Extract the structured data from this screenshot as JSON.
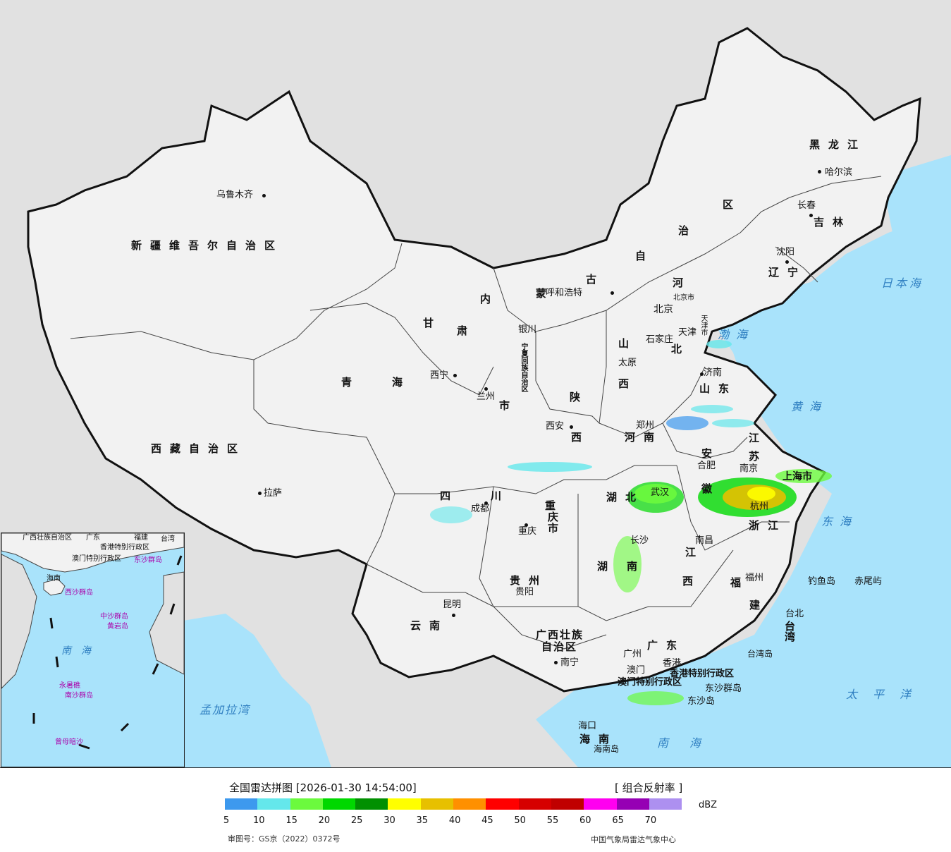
{
  "map": {
    "cities": [
      {
        "id": "urumqi",
        "name": "乌鲁木齐"
      },
      {
        "id": "hohhot",
        "name": "呼和浩特"
      },
      {
        "id": "harbin",
        "name": "哈尔滨"
      },
      {
        "id": "changchun",
        "name": "长春"
      },
      {
        "id": "shenyang",
        "name": "沈阳"
      },
      {
        "id": "beijing",
        "name": "北京"
      },
      {
        "id": "beijingshi",
        "name": "北京市"
      },
      {
        "id": "tianjin",
        "name": "天津"
      },
      {
        "id": "tianjinshi",
        "name": "天津市"
      },
      {
        "id": "shijiazhuang",
        "name": "石家庄"
      },
      {
        "id": "taiyuan",
        "name": "太原"
      },
      {
        "id": "yinchuan",
        "name": "银川"
      },
      {
        "id": "xining",
        "name": "西宁"
      },
      {
        "id": "lanzhou",
        "name": "兰州"
      },
      {
        "id": "xian",
        "name": "西安"
      },
      {
        "id": "zhengzhou",
        "name": "郑州"
      },
      {
        "id": "jinan",
        "name": "济南"
      },
      {
        "id": "hefei",
        "name": "合肥"
      },
      {
        "id": "nanjing",
        "name": "南京"
      },
      {
        "id": "shanghai",
        "name": "上海市"
      },
      {
        "id": "hangzhou",
        "name": "杭州"
      },
      {
        "id": "wuhan",
        "name": "武汉"
      },
      {
        "id": "nanchang",
        "name": "南昌"
      },
      {
        "id": "changsha",
        "name": "长沙"
      },
      {
        "id": "chengdu",
        "name": "成都"
      },
      {
        "id": "chongqing",
        "name": "重庆"
      },
      {
        "id": "guiyang",
        "name": "贵阳"
      },
      {
        "id": "kunming",
        "name": "昆明"
      },
      {
        "id": "lhasa",
        "name": "拉萨"
      },
      {
        "id": "nanning",
        "name": "南宁"
      },
      {
        "id": "guangzhou",
        "name": "广州"
      },
      {
        "id": "fuzhou",
        "name": "福州"
      },
      {
        "id": "taibei",
        "name": "台北"
      },
      {
        "id": "haikou",
        "name": "海口"
      },
      {
        "id": "xianggang",
        "name": "香港"
      },
      {
        "id": "aomen",
        "name": "澳门"
      }
    ],
    "provinces": [
      {
        "id": "xinjiang",
        "name": "新疆维吾尔自治区"
      },
      {
        "id": "xizang",
        "name": "西藏自治区"
      },
      {
        "id": "qinghai1",
        "name": "青"
      },
      {
        "id": "qinghai2",
        "name": "海"
      },
      {
        "id": "gansu",
        "name": "甘"
      },
      {
        "id": "gansu2",
        "name": "肃"
      },
      {
        "id": "neimeng1",
        "name": "内"
      },
      {
        "id": "neimeng2",
        "name": "蒙"
      },
      {
        "id": "neimeng3",
        "name": "古"
      },
      {
        "id": "neimeng4",
        "name": "自"
      },
      {
        "id": "neimeng5",
        "name": "治"
      },
      {
        "id": "neimeng6",
        "name": "区"
      },
      {
        "id": "heilongjiang",
        "name": "黑龙江"
      },
      {
        "id": "jilin",
        "name": "吉林"
      },
      {
        "id": "liaoning",
        "name": "辽宁"
      },
      {
        "id": "hebei1",
        "name": "河"
      },
      {
        "id": "hebei2",
        "name": "北"
      },
      {
        "id": "shanxi1",
        "name": "山"
      },
      {
        "id": "shanxi2",
        "name": "西"
      },
      {
        "id": "shaanxi1",
        "name": "陕"
      },
      {
        "id": "shaanxi2",
        "name": "西"
      },
      {
        "id": "ningxia",
        "name": "宁夏回族自治区"
      },
      {
        "id": "shandong",
        "name": "山东"
      },
      {
        "id": "henan",
        "name": "河南"
      },
      {
        "id": "anhui1",
        "name": "安"
      },
      {
        "id": "anhui2",
        "name": "徽"
      },
      {
        "id": "jiangsu1",
        "name": "江"
      },
      {
        "id": "jiangsu2",
        "name": "苏"
      },
      {
        "id": "zhejiang",
        "name": "浙江"
      },
      {
        "id": "hubei",
        "name": "湖北"
      },
      {
        "id": "hunan1",
        "name": "湖"
      },
      {
        "id": "hunan2",
        "name": "南"
      },
      {
        "id": "jiangxi1",
        "name": "江"
      },
      {
        "id": "jiangxi2",
        "name": "西"
      },
      {
        "id": "fujian1",
        "name": "福"
      },
      {
        "id": "fujian2",
        "name": "建"
      },
      {
        "id": "sichuan1",
        "name": "四"
      },
      {
        "id": "sichuan2",
        "name": "川"
      },
      {
        "id": "chongqingshi1",
        "name": "重"
      },
      {
        "id": "chongqingshi2",
        "name": "庆"
      },
      {
        "id": "chongqingshi3",
        "name": "市"
      },
      {
        "id": "guizhou",
        "name": "贵州"
      },
      {
        "id": "yunnan",
        "name": "云南"
      },
      {
        "id": "guangxi1",
        "name": "广西壮族"
      },
      {
        "id": "guangxi2",
        "name": "自治区"
      },
      {
        "id": "guangdong",
        "name": "广东"
      },
      {
        "id": "hainan",
        "name": "海南"
      },
      {
        "id": "taiwan",
        "name": "台湾"
      },
      {
        "id": "hk_sar",
        "name": "香港特别行政区"
      },
      {
        "id": "macau_sar",
        "name": "澳门特别行政区"
      },
      {
        "id": "gansu_sz",
        "name": "市"
      }
    ],
    "seas": [
      {
        "id": "bohai",
        "name": "渤海"
      },
      {
        "id": "huanghai",
        "name": "黄海"
      },
      {
        "id": "donghai",
        "name": "东海"
      },
      {
        "id": "nanhai",
        "name": "南海"
      },
      {
        "id": "taipingyang",
        "name": "太平洋"
      },
      {
        "id": "ribenhai",
        "name": "日本海"
      },
      {
        "id": "mengjialawan",
        "name": "孟加拉湾"
      }
    ],
    "islands": [
      {
        "id": "diaoyudao",
        "name": "钓鱼岛"
      },
      {
        "id": "chiweiyu",
        "name": "赤尾屿"
      },
      {
        "id": "taiwandao",
        "name": "台湾岛"
      },
      {
        "id": "hainandao",
        "name": "海南岛"
      },
      {
        "id": "dongsha1",
        "name": "东沙群岛"
      },
      {
        "id": "dongsha2",
        "name": "东沙岛"
      }
    ],
    "inset": {
      "labels": [
        "广西壮族自治区",
        "广东",
        "福建",
        "台湾",
        "香港特别行政区",
        "澳门特别行政区",
        "海南",
        "东沙群岛",
        "西沙群岛",
        "中沙群岛",
        "黄岩岛",
        "南海",
        "永暑礁",
        "南沙群岛",
        "曾母暗沙"
      ]
    }
  },
  "legend": {
    "title": "全国雷达拼图 [2026-01-30 14:54:00]",
    "product": "[ 组合反射率 ]",
    "unit": "dBZ",
    "ticks": [
      "5",
      "10",
      "15",
      "20",
      "25",
      "30",
      "35",
      "40",
      "45",
      "50",
      "55",
      "60",
      "65",
      "70"
    ],
    "colors": [
      "#3d99ee",
      "#64e7eb",
      "#6bfa3d",
      "#00d800",
      "#019001",
      "#ffff00",
      "#e7c000",
      "#ff9000",
      "#ff0000",
      "#d60000",
      "#c00000",
      "#ff00f0",
      "#9600b4",
      "#ad90f0"
    ],
    "approval": "审图号：GS京（2022）0372号",
    "credit": "中国气象局雷达气象中心"
  }
}
